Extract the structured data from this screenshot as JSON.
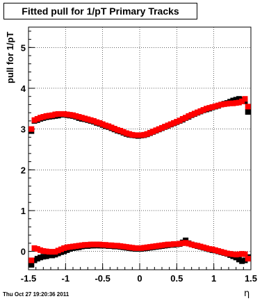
{
  "chart_data": {
    "type": "scatter",
    "title": "Fitted pull for 1/pT  Primary Tracks",
    "ylabel": "pull for 1/pT",
    "xlabel": "η",
    "xlim": [
      -1.5,
      1.5
    ],
    "ylim": [
      -0.45,
      5.5
    ],
    "x_ticks": [
      -1.5,
      -1,
      -0.5,
      0,
      0.5,
      1,
      1.5
    ],
    "x_tick_labels": [
      "-1.5",
      "-1",
      "-0.5",
      "0",
      "0.5",
      "1",
      "1.5"
    ],
    "y_ticks": [
      0,
      1,
      2,
      3,
      4,
      5
    ],
    "y_tick_labels": [
      "0",
      "1",
      "2",
      "3",
      "4",
      "5"
    ],
    "grid": true,
    "series": [
      {
        "color": "#000000",
        "marker": "square",
        "points": [
          [
            -1.46,
            2.95
          ],
          [
            -1.42,
            3.2
          ],
          [
            -1.38,
            3.22
          ],
          [
            -1.34,
            3.25
          ],
          [
            -1.3,
            3.27
          ],
          [
            -1.26,
            3.29
          ],
          [
            -1.22,
            3.3
          ],
          [
            -1.18,
            3.31
          ],
          [
            -1.14,
            3.32
          ],
          [
            -1.1,
            3.33
          ],
          [
            -1.06,
            3.35
          ],
          [
            -1.02,
            3.36
          ],
          [
            -0.98,
            3.34
          ],
          [
            -0.94,
            3.33
          ],
          [
            -0.9,
            3.32
          ],
          [
            -0.86,
            3.3
          ],
          [
            -0.82,
            3.27
          ],
          [
            -0.78,
            3.25
          ],
          [
            -0.74,
            3.24
          ],
          [
            -0.7,
            3.22
          ],
          [
            -0.66,
            3.2
          ],
          [
            -0.62,
            3.18
          ],
          [
            -0.58,
            3.15
          ],
          [
            -0.54,
            3.13
          ],
          [
            -0.5,
            3.1
          ],
          [
            -0.46,
            3.07
          ],
          [
            -0.42,
            3.05
          ],
          [
            -0.38,
            3.02
          ],
          [
            -0.34,
            2.99
          ],
          [
            -0.3,
            2.96
          ],
          [
            -0.26,
            2.94
          ],
          [
            -0.22,
            2.91
          ],
          [
            -0.18,
            2.88
          ],
          [
            -0.14,
            2.86
          ],
          [
            -0.1,
            2.85
          ],
          [
            -0.06,
            2.84
          ],
          [
            -0.02,
            2.83
          ],
          [
            0.02,
            2.84
          ],
          [
            0.06,
            2.85
          ],
          [
            0.1,
            2.87
          ],
          [
            0.14,
            2.9
          ],
          [
            0.18,
            2.93
          ],
          [
            0.22,
            2.96
          ],
          [
            0.26,
            2.99
          ],
          [
            0.3,
            3.02
          ],
          [
            0.34,
            3.05
          ],
          [
            0.38,
            3.08
          ],
          [
            0.42,
            3.11
          ],
          [
            0.46,
            3.14
          ],
          [
            0.5,
            3.17
          ],
          [
            0.54,
            3.2
          ],
          [
            0.58,
            3.23
          ],
          [
            0.62,
            3.27
          ],
          [
            0.66,
            3.3
          ],
          [
            0.7,
            3.34
          ],
          [
            0.74,
            3.37
          ],
          [
            0.78,
            3.4
          ],
          [
            0.82,
            3.43
          ],
          [
            0.86,
            3.46
          ],
          [
            0.9,
            3.48
          ],
          [
            0.94,
            3.5
          ],
          [
            0.98,
            3.53
          ],
          [
            1.02,
            3.55
          ],
          [
            1.06,
            3.57
          ],
          [
            1.1,
            3.6
          ],
          [
            1.14,
            3.62
          ],
          [
            1.18,
            3.64
          ],
          [
            1.22,
            3.67
          ],
          [
            1.26,
            3.7
          ],
          [
            1.3,
            3.72
          ],
          [
            1.34,
            3.74
          ],
          [
            1.38,
            3.72
          ],
          [
            1.42,
            3.68
          ],
          [
            1.46,
            3.42
          ],
          [
            -1.46,
            -0.33
          ],
          [
            -1.42,
            -0.22
          ],
          [
            -1.38,
            -0.18
          ],
          [
            -1.34,
            -0.15
          ],
          [
            -1.3,
            -0.13
          ],
          [
            -1.26,
            -0.12
          ],
          [
            -1.22,
            -0.1
          ],
          [
            -1.18,
            -0.1
          ],
          [
            -1.14,
            -0.08
          ],
          [
            -1.1,
            -0.05
          ],
          [
            -1.06,
            -0.02
          ],
          [
            -1.02,
            0.0
          ],
          [
            -0.98,
            0.03
          ],
          [
            -0.94,
            0.06
          ],
          [
            -0.9,
            0.08
          ],
          [
            -0.86,
            0.09
          ],
          [
            -0.82,
            0.1
          ],
          [
            -0.78,
            0.12
          ],
          [
            -0.74,
            0.13
          ],
          [
            -0.7,
            0.13
          ],
          [
            -0.66,
            0.14
          ],
          [
            -0.62,
            0.14
          ],
          [
            -0.58,
            0.15
          ],
          [
            -0.54,
            0.14
          ],
          [
            -0.5,
            0.14
          ],
          [
            -0.46,
            0.14
          ],
          [
            -0.42,
            0.13
          ],
          [
            -0.38,
            0.13
          ],
          [
            -0.34,
            0.12
          ],
          [
            -0.3,
            0.12
          ],
          [
            -0.26,
            0.11
          ],
          [
            -0.22,
            0.1
          ],
          [
            -0.18,
            0.09
          ],
          [
            -0.14,
            0.08
          ],
          [
            -0.1,
            0.07
          ],
          [
            -0.06,
            0.06
          ],
          [
            -0.02,
            0.06
          ],
          [
            0.02,
            0.06
          ],
          [
            0.06,
            0.07
          ],
          [
            0.1,
            0.08
          ],
          [
            0.14,
            0.09
          ],
          [
            0.18,
            0.1
          ],
          [
            0.22,
            0.11
          ],
          [
            0.26,
            0.12
          ],
          [
            0.3,
            0.13
          ],
          [
            0.34,
            0.14
          ],
          [
            0.38,
            0.15
          ],
          [
            0.42,
            0.16
          ],
          [
            0.46,
            0.16
          ],
          [
            0.5,
            0.17
          ],
          [
            0.54,
            0.18
          ],
          [
            0.58,
            0.22
          ],
          [
            0.62,
            0.27
          ],
          [
            0.66,
            0.2
          ],
          [
            0.7,
            0.17
          ],
          [
            0.74,
            0.15
          ],
          [
            0.78,
            0.13
          ],
          [
            0.82,
            0.11
          ],
          [
            0.86,
            0.09
          ],
          [
            0.9,
            0.07
          ],
          [
            0.94,
            0.05
          ],
          [
            0.98,
            0.03
          ],
          [
            1.02,
            0.02
          ],
          [
            1.06,
            0.0
          ],
          [
            1.1,
            -0.02
          ],
          [
            1.14,
            -0.04
          ],
          [
            1.18,
            -0.06
          ],
          [
            1.22,
            -0.09
          ],
          [
            1.26,
            -0.12
          ],
          [
            1.3,
            -0.15
          ],
          [
            1.34,
            -0.2
          ],
          [
            1.38,
            -0.24
          ],
          [
            1.42,
            -0.22
          ],
          [
            1.46,
            -0.14
          ]
        ]
      },
      {
        "color": "#ff0000",
        "marker": "square",
        "points": [
          [
            -1.46,
            3.0
          ],
          [
            -1.42,
            3.22
          ],
          [
            -1.38,
            3.25
          ],
          [
            -1.34,
            3.28
          ],
          [
            -1.3,
            3.3
          ],
          [
            -1.26,
            3.32
          ],
          [
            -1.22,
            3.33
          ],
          [
            -1.18,
            3.34
          ],
          [
            -1.14,
            3.36
          ],
          [
            -1.1,
            3.37
          ],
          [
            -1.06,
            3.37
          ],
          [
            -1.02,
            3.37
          ],
          [
            -0.98,
            3.36
          ],
          [
            -0.94,
            3.35
          ],
          [
            -0.9,
            3.34
          ],
          [
            -0.86,
            3.32
          ],
          [
            -0.82,
            3.3
          ],
          [
            -0.78,
            3.28
          ],
          [
            -0.74,
            3.26
          ],
          [
            -0.7,
            3.24
          ],
          [
            -0.66,
            3.22
          ],
          [
            -0.62,
            3.2
          ],
          [
            -0.58,
            3.17
          ],
          [
            -0.54,
            3.15
          ],
          [
            -0.5,
            3.12
          ],
          [
            -0.46,
            3.09
          ],
          [
            -0.42,
            3.07
          ],
          [
            -0.38,
            3.04
          ],
          [
            -0.34,
            3.01
          ],
          [
            -0.3,
            2.98
          ],
          [
            -0.26,
            2.96
          ],
          [
            -0.22,
            2.93
          ],
          [
            -0.18,
            2.9
          ],
          [
            -0.14,
            2.88
          ],
          [
            -0.1,
            2.86
          ],
          [
            -0.06,
            2.85
          ],
          [
            -0.02,
            2.85
          ],
          [
            0.02,
            2.85
          ],
          [
            0.06,
            2.86
          ],
          [
            0.1,
            2.88
          ],
          [
            0.14,
            2.91
          ],
          [
            0.18,
            2.94
          ],
          [
            0.22,
            2.97
          ],
          [
            0.26,
            3.0
          ],
          [
            0.3,
            3.03
          ],
          [
            0.34,
            3.06
          ],
          [
            0.38,
            3.09
          ],
          [
            0.42,
            3.12
          ],
          [
            0.46,
            3.15
          ],
          [
            0.5,
            3.18
          ],
          [
            0.54,
            3.21
          ],
          [
            0.58,
            3.25
          ],
          [
            0.62,
            3.28
          ],
          [
            0.66,
            3.32
          ],
          [
            0.7,
            3.35
          ],
          [
            0.74,
            3.38
          ],
          [
            0.78,
            3.41
          ],
          [
            0.82,
            3.44
          ],
          [
            0.86,
            3.47
          ],
          [
            0.9,
            3.5
          ],
          [
            0.94,
            3.52
          ],
          [
            0.98,
            3.54
          ],
          [
            1.02,
            3.56
          ],
          [
            1.06,
            3.58
          ],
          [
            1.1,
            3.6
          ],
          [
            1.14,
            3.61
          ],
          [
            1.18,
            3.62
          ],
          [
            1.22,
            3.63
          ],
          [
            1.26,
            3.63
          ],
          [
            1.3,
            3.64
          ],
          [
            1.34,
            3.65
          ],
          [
            1.38,
            3.68
          ],
          [
            1.42,
            3.74
          ],
          [
            1.46,
            3.55
          ],
          [
            -1.46,
            -0.22
          ],
          [
            -1.42,
            0.08
          ],
          [
            -1.38,
            0.06
          ],
          [
            -1.34,
            0.03
          ],
          [
            -1.3,
            0.01
          ],
          [
            -1.26,
            0.0
          ],
          [
            -1.22,
            -0.01
          ],
          [
            -1.18,
            -0.01
          ],
          [
            -1.14,
            -0.01
          ],
          [
            -1.1,
            0.02
          ],
          [
            -1.06,
            0.05
          ],
          [
            -1.02,
            0.08
          ],
          [
            -0.98,
            0.1
          ],
          [
            -0.94,
            0.11
          ],
          [
            -0.9,
            0.12
          ],
          [
            -0.86,
            0.13
          ],
          [
            -0.82,
            0.14
          ],
          [
            -0.78,
            0.15
          ],
          [
            -0.74,
            0.16
          ],
          [
            -0.7,
            0.16
          ],
          [
            -0.66,
            0.17
          ],
          [
            -0.62,
            0.17
          ],
          [
            -0.58,
            0.17
          ],
          [
            -0.54,
            0.17
          ],
          [
            -0.5,
            0.16
          ],
          [
            -0.46,
            0.16
          ],
          [
            -0.42,
            0.15
          ],
          [
            -0.38,
            0.15
          ],
          [
            -0.34,
            0.14
          ],
          [
            -0.3,
            0.14
          ],
          [
            -0.26,
            0.13
          ],
          [
            -0.22,
            0.12
          ],
          [
            -0.18,
            0.11
          ],
          [
            -0.14,
            0.1
          ],
          [
            -0.1,
            0.09
          ],
          [
            -0.06,
            0.08
          ],
          [
            -0.02,
            0.08
          ],
          [
            0.02,
            0.08
          ],
          [
            0.06,
            0.09
          ],
          [
            0.1,
            0.1
          ],
          [
            0.14,
            0.11
          ],
          [
            0.18,
            0.12
          ],
          [
            0.22,
            0.13
          ],
          [
            0.26,
            0.14
          ],
          [
            0.3,
            0.15
          ],
          [
            0.34,
            0.16
          ],
          [
            0.38,
            0.17
          ],
          [
            0.42,
            0.17
          ],
          [
            0.46,
            0.18
          ],
          [
            0.5,
            0.18
          ],
          [
            0.54,
            0.19
          ],
          [
            0.58,
            0.2
          ],
          [
            0.62,
            0.21
          ],
          [
            0.66,
            0.19
          ],
          [
            0.7,
            0.17
          ],
          [
            0.74,
            0.15
          ],
          [
            0.78,
            0.14
          ],
          [
            0.82,
            0.12
          ],
          [
            0.86,
            0.1
          ],
          [
            0.9,
            0.08
          ],
          [
            0.94,
            0.06
          ],
          [
            0.98,
            0.05
          ],
          [
            1.02,
            0.03
          ],
          [
            1.06,
            0.01
          ],
          [
            1.1,
            -0.01
          ],
          [
            1.14,
            -0.03
          ],
          [
            1.18,
            -0.05
          ],
          [
            1.22,
            -0.06
          ],
          [
            1.26,
            -0.07
          ],
          [
            1.3,
            -0.08
          ],
          [
            1.34,
            -0.07
          ],
          [
            1.38,
            -0.06
          ],
          [
            1.42,
            -0.07
          ],
          [
            1.46,
            -0.18
          ]
        ]
      }
    ]
  },
  "timestamp": "Thu Oct 27 19:20:36 2011"
}
